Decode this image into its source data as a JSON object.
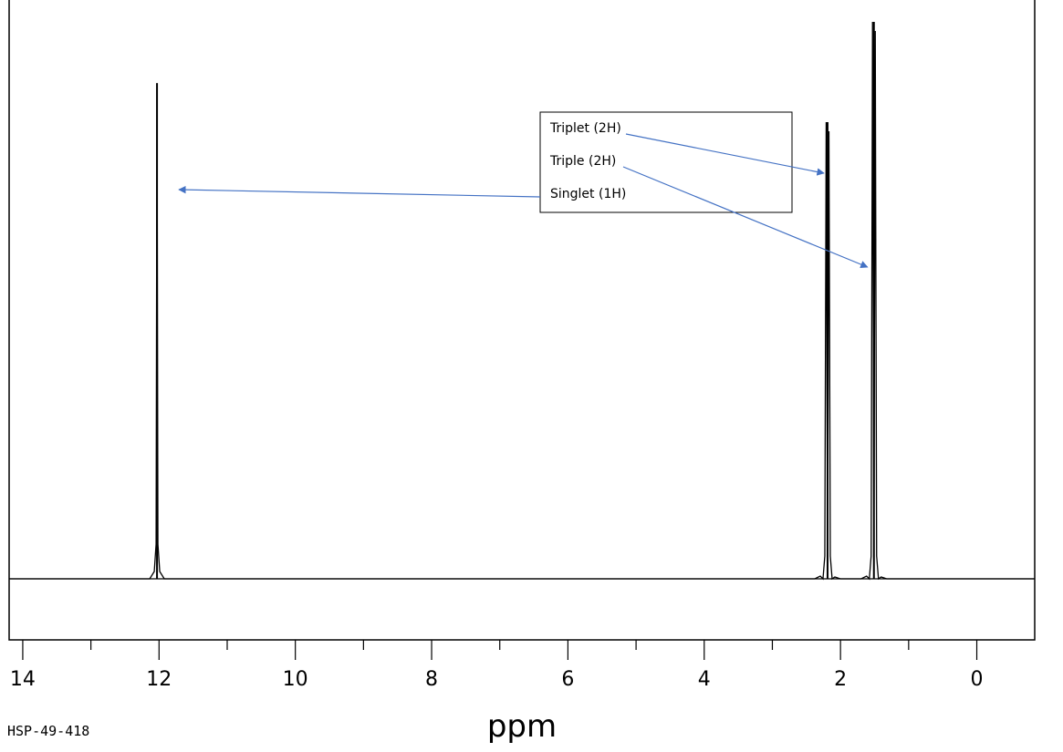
{
  "chart_data": {
    "type": "line",
    "title": "",
    "xlabel": "ppm",
    "ylabel": "",
    "xlim": [
      14.2,
      -0.85
    ],
    "x_reversed": true,
    "major_ticks": [
      14,
      12,
      10,
      8,
      6,
      4,
      2,
      0
    ],
    "tick_labels": [
      "14",
      "12",
      "10",
      "8",
      "6",
      "4",
      "2",
      "0"
    ],
    "minor_ticks": [
      13,
      11,
      9,
      7,
      5,
      3,
      1
    ],
    "grid": false,
    "peaks": [
      {
        "ppm": 12.03,
        "relative_height": 0.89,
        "multiplicity": "singlet"
      },
      {
        "ppm": 2.19,
        "relative_height": 0.82,
        "multiplicity": "triplet"
      },
      {
        "ppm": 1.51,
        "relative_height": 1.0,
        "multiplicity": "triplet"
      }
    ],
    "annotations": [
      {
        "text": "Triplet (2H)",
        "target_ppm": 2.19
      },
      {
        "text": "Triple (2H)",
        "target_ppm": 1.51
      },
      {
        "text": "Singlet (1H)",
        "target_ppm": 12.03
      }
    ],
    "footer": "HSP-49-418"
  },
  "colors": {
    "spectrum": "#000000",
    "arrow": "#4472C4"
  }
}
